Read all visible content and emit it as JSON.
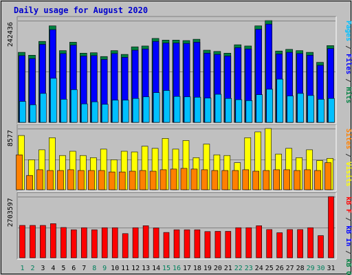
{
  "chart_data": {
    "type": "bar",
    "title": "Daily usage for August 2020",
    "categories": [
      "1",
      "2",
      "3",
      "4",
      "5",
      "6",
      "7",
      "8",
      "9",
      "10",
      "11",
      "12",
      "13",
      "14",
      "15",
      "16",
      "17",
      "18",
      "19",
      "20",
      "21",
      "22",
      "23",
      "24",
      "25",
      "26",
      "27",
      "28",
      "29",
      "30",
      "31"
    ],
    "weekend_days": [
      "1",
      "2",
      "8",
      "9",
      "15",
      "16",
      "22",
      "23",
      "29",
      "30"
    ],
    "panels": [
      {
        "id": "hits",
        "ymax_label": "242436",
        "ylim": [
          0,
          242436
        ],
        "ylabel_parts": [
          {
            "text": "Pages",
            "color": "#00c0ff"
          },
          {
            "text": " / ",
            "color": "#303030"
          },
          {
            "text": "Files",
            "color": "#0000ff"
          },
          {
            "text": " / ",
            "color": "#303030"
          },
          {
            "text": "Hits",
            "color": "#008040"
          }
        ],
        "series": [
          {
            "name": "Hits",
            "color": "#008040",
            "values": [
              167000,
              160000,
              193000,
              230000,
              171000,
              191000,
              165000,
              166000,
              157000,
              171000,
              162000,
              180000,
              182000,
              200000,
              196000,
              196000,
              195000,
              198000,
              172000,
              169000,
              165000,
              185000,
              182000,
              230000,
              242436,
              170000,
              174000,
              171000,
              167000,
              143000,
              183000
            ]
          },
          {
            "name": "Files",
            "color": "#0000ff",
            "values": [
              159000,
              152000,
              186000,
              221000,
              164000,
              184000,
              158000,
              159000,
              150000,
              164000,
              155000,
              172000,
              175000,
              193000,
              189000,
              189000,
              188000,
              191000,
              165000,
              162000,
              158000,
              178000,
              175000,
              222000,
              234000,
              163000,
              167000,
              164000,
              160000,
              136000,
              176000
            ]
          },
          {
            "name": "Pages",
            "color": "#00c0ff",
            "values": [
              50000,
              42000,
              69000,
              105000,
              55000,
              78000,
              44000,
              49000,
              43000,
              53000,
              53000,
              57000,
              61000,
              71000,
              76000,
              62000,
              61000,
              60000,
              58000,
              67000,
              57000,
              54000,
              52000,
              66000,
              79000,
              103000,
              63000,
              69000,
              64000,
              55000,
              57000
            ]
          }
        ]
      },
      {
        "id": "visits",
        "ymax_label": "8577",
        "ylim": [
          0,
          8577
        ],
        "ylabel_parts": [
          {
            "text": "Sites",
            "color": "#ff8000"
          },
          {
            "text": " / ",
            "color": "#303030"
          },
          {
            "text": "Visits",
            "color": "#ffff00"
          }
        ],
        "series": [
          {
            "name": "Visits",
            "color": "#ffff00",
            "values": [
              7600,
              4200,
              5600,
              7300,
              4800,
              5400,
              4800,
              4500,
              5700,
              4200,
              5400,
              5300,
              6100,
              5800,
              7200,
              5700,
              6900,
              4500,
              6400,
              4900,
              4800,
              3800,
              7300,
              8100,
              8577,
              5000,
              5800,
              4500,
              5600,
              4100,
              4400
            ]
          },
          {
            "name": "Sites",
            "color": "#ff8000",
            "values": [
              4900,
              2000,
              2800,
              2700,
              2700,
              2800,
              2700,
              2700,
              2700,
              2500,
              2500,
              2600,
              2700,
              2600,
              2800,
              2900,
              3000,
              2900,
              2800,
              2700,
              2700,
              2700,
              2800,
              2600,
              2700,
              2800,
              2800,
              2700,
              2800,
              2700,
              3800
            ]
          }
        ]
      },
      {
        "id": "kbytes",
        "ymax_label": "2703597",
        "ylim": [
          0,
          2703597
        ],
        "ylabel_parts": [
          {
            "text": "kB F",
            "color": "#ff0000"
          },
          {
            "text": " / ",
            "color": "#303030"
          },
          {
            "text": "kB In",
            "color": "#0000ff"
          },
          {
            "text": " / ",
            "color": "#303030"
          },
          {
            "text": "kB Out",
            "color": "#008040"
          }
        ],
        "series": [
          {
            "name": "kB F",
            "color": "#ff0000",
            "values": [
              1430000,
              1430000,
              1430000,
              1510000,
              1340000,
              1240000,
              1330000,
              1240000,
              1330000,
              1330000,
              1070000,
              1330000,
              1420000,
              1320000,
              1120000,
              1240000,
              1240000,
              1240000,
              1160000,
              1170000,
              1170000,
              1330000,
              1330000,
              1420000,
              1250000,
              1110000,
              1250000,
              1250000,
              1330000,
              980000,
              2703597
            ]
          }
        ]
      }
    ]
  }
}
